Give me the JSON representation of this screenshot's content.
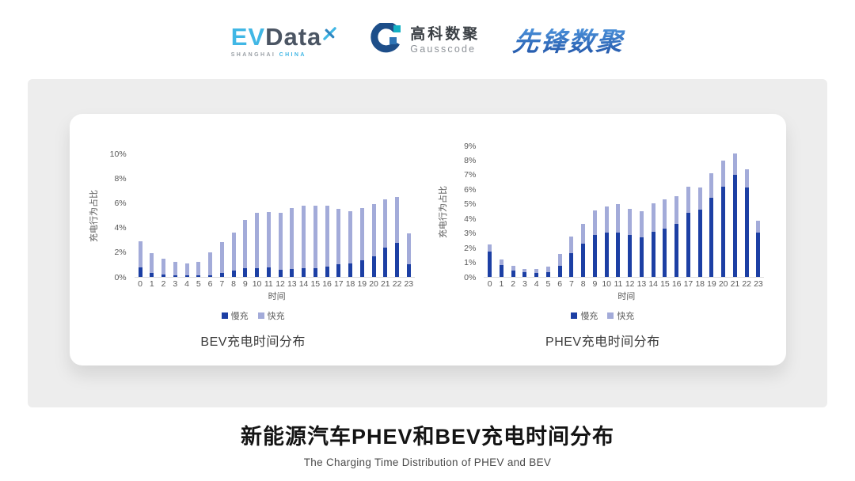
{
  "header": {
    "evdata": {
      "ev": "EV",
      "data": "Data",
      "sub_left": "SHANGHAI",
      "sub_right": "CHINA"
    },
    "gausscode": {
      "cn": "高科数聚",
      "en": "Gausscode"
    },
    "xianfeng": {
      "text": "先锋数聚"
    }
  },
  "footer": {
    "title": "新能源汽车PHEV和BEV充电时间分布",
    "subtitle": "The Charging Time Distribution of PHEV and BEV"
  },
  "colors": {
    "slow_blue": "#1c3fa4",
    "fast_blue": "#a3abd9",
    "evdata_cyan": "#41b7e5",
    "evdata_slate": "#4b5563",
    "gauss_navy": "#1d4e89",
    "gauss_teal": "#14b1c4",
    "gauss_blue": "#2e74b5",
    "xianfeng_blue": "#2f6fc4"
  },
  "chart_data": [
    {
      "type": "bar",
      "stacked": true,
      "title": "BEV充电时间分布",
      "ylabel": "充电行为占比",
      "xlabel": "时间",
      "ylim": [
        0,
        10
      ],
      "ytick_step": 2,
      "ytick_suffix": "%",
      "grid": false,
      "legend_position": "bottom",
      "categories": [
        "0",
        "1",
        "2",
        "3",
        "4",
        "5",
        "6",
        "7",
        "8",
        "9",
        "10",
        "11",
        "12",
        "13",
        "14",
        "15",
        "16",
        "17",
        "18",
        "19",
        "20",
        "21",
        "22",
        "23"
      ],
      "series": [
        {
          "name": "慢充",
          "color": "#1c3fa4",
          "values": [
            0.8,
            0.35,
            0.2,
            0.1,
            0.1,
            0.1,
            0.15,
            0.35,
            0.5,
            0.7,
            0.7,
            0.75,
            0.6,
            0.65,
            0.7,
            0.7,
            0.85,
            1.0,
            1.1,
            1.35,
            1.65,
            2.4,
            2.75,
            1.0
          ]
        },
        {
          "name": "快充",
          "color": "#a3abd9",
          "values": [
            2.1,
            1.55,
            1.3,
            1.1,
            1.0,
            1.1,
            1.85,
            2.45,
            3.1,
            3.9,
            4.5,
            4.5,
            4.6,
            4.95,
            5.1,
            5.1,
            4.95,
            4.5,
            4.2,
            4.25,
            4.25,
            3.9,
            3.75,
            2.55
          ]
        }
      ]
    },
    {
      "type": "bar",
      "stacked": true,
      "title": "PHEV充电时间分布",
      "ylabel": "充电行为占比",
      "xlabel": "时间",
      "ylim": [
        0,
        9
      ],
      "ytick_step": 1,
      "ytick_suffix": "%",
      "grid": false,
      "legend_position": "bottom",
      "categories": [
        "0",
        "1",
        "2",
        "3",
        "4",
        "5",
        "6",
        "7",
        "8",
        "9",
        "10",
        "11",
        "12",
        "13",
        "14",
        "15",
        "16",
        "17",
        "18",
        "19",
        "20",
        "21",
        "22",
        "23"
      ],
      "series": [
        {
          "name": "慢充",
          "color": "#1c3fa4",
          "values": [
            1.75,
            0.8,
            0.45,
            0.3,
            0.25,
            0.3,
            0.75,
            1.65,
            2.3,
            2.85,
            3.05,
            3.05,
            2.85,
            2.7,
            3.1,
            3.3,
            3.65,
            4.4,
            4.6,
            5.4,
            6.2,
            7.0,
            6.15,
            3.05
          ]
        },
        {
          "name": "快充",
          "color": "#a3abd9",
          "values": [
            0.5,
            0.4,
            0.3,
            0.25,
            0.3,
            0.4,
            0.85,
            1.1,
            1.35,
            1.7,
            1.75,
            1.95,
            1.8,
            1.8,
            1.95,
            2.0,
            1.9,
            1.8,
            1.55,
            1.7,
            1.75,
            1.45,
            1.25,
            0.8
          ]
        }
      ]
    }
  ]
}
